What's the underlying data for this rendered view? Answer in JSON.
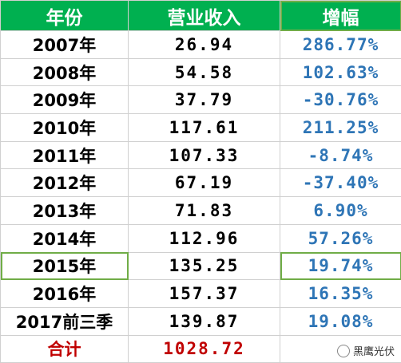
{
  "table": {
    "header": [
      "年份",
      "营业收入",
      "增幅"
    ],
    "rows": [
      [
        "2007年",
        "26.94",
        "286.77%"
      ],
      [
        "2008年",
        "54.58",
        "102.63%"
      ],
      [
        "2009年",
        "37.79",
        "-30.76%"
      ],
      [
        "2010年",
        "117.61",
        "211.25%"
      ],
      [
        "2011年",
        "107.33",
        "-8.74%"
      ],
      [
        "2012年",
        "67.19",
        "-37.40%"
      ],
      [
        "2013年",
        "71.83",
        "6.90%"
      ],
      [
        "2014年",
        "112.96",
        "57.26%"
      ],
      [
        "2015年",
        "135.25",
        "19.74%"
      ],
      [
        "2016年",
        "157.37",
        "16.35%"
      ],
      [
        "2017前三季",
        "139.87",
        "19.08%"
      ]
    ],
    "total": [
      "合计",
      "1028.72"
    ]
  },
  "watermark": "黑鹰光伏"
}
